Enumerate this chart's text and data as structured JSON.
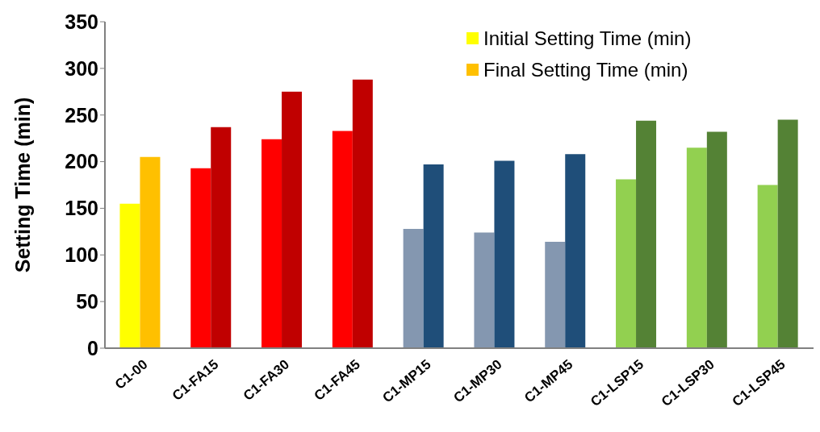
{
  "chart_data": {
    "type": "bar",
    "ylabel": "Setting Time (min)",
    "categories": [
      "C1-00",
      "C1-FA15",
      "C1-FA30",
      "C1-FA45",
      "C1-MP15",
      "C1-MP30",
      "C1-MP45",
      "C1-LSP15",
      "C1-LSP30",
      "C1-LSP45"
    ],
    "series": [
      {
        "name": "Initial Setting Time (min)",
        "color": "#ffff00",
        "colors": [
          "#ffff00",
          "#ff0000",
          "#ff0000",
          "#ff0000",
          "#8497b0",
          "#8497b0",
          "#8497b0",
          "#92d050",
          "#92d050",
          "#92d050"
        ],
        "values": [
          155,
          193,
          224,
          233,
          128,
          124,
          114,
          181,
          215,
          175
        ]
      },
      {
        "name": "Final Setting Time (min)",
        "color": "#ffc000",
        "colors": [
          "#ffc000",
          "#c00000",
          "#c00000",
          "#c00000",
          "#1f4e79",
          "#1f4e79",
          "#1f4e79",
          "#548235",
          "#548235",
          "#548235"
        ],
        "values": [
          205,
          237,
          275,
          288,
          197,
          201,
          208,
          244,
          232,
          245
        ]
      }
    ],
    "ylim": [
      0,
      350
    ],
    "yticks": [
      0,
      50,
      100,
      150,
      200,
      250,
      300,
      350
    ],
    "grid": false,
    "legend": "top right"
  }
}
